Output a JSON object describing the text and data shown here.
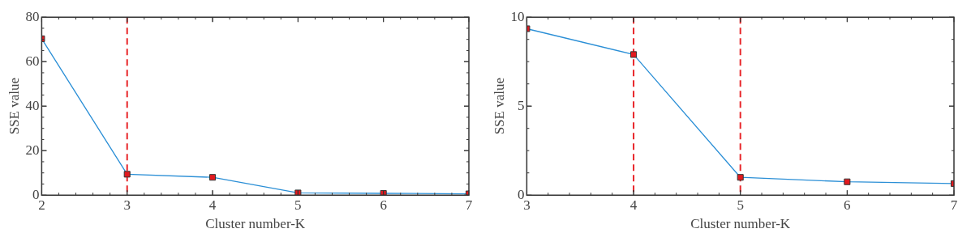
{
  "chart_data": [
    {
      "type": "line",
      "xlabel": "Cluster number-K",
      "ylabel": "SSE value",
      "x": [
        2,
        3,
        4,
        5,
        6,
        7
      ],
      "xlim": [
        2,
        7
      ],
      "xticks": [
        2,
        3,
        4,
        5,
        6,
        7
      ],
      "ylim": [
        0,
        80
      ],
      "yticks": [
        0,
        20,
        40,
        60,
        80
      ],
      "marker": "square",
      "line_style": "solid",
      "grid": false,
      "legend": false,
      "series": [
        {
          "color": "#2b8fd6",
          "values": [
            70.3,
            9.4,
            8.0,
            1.0,
            0.8,
            0.6
          ]
        }
      ],
      "ref_lines": [
        {
          "axis": "x",
          "value": 3,
          "color": "#e8262a",
          "line_style": "dashed"
        }
      ]
    },
    {
      "type": "line",
      "xlabel": "Cluster number-K",
      "ylabel": "SSE value",
      "x": [
        3,
        4,
        5,
        6,
        7
      ],
      "xlim": [
        3,
        7
      ],
      "xticks": [
        3,
        4,
        5,
        6,
        7
      ],
      "ylim": [
        0,
        10
      ],
      "yticks": [
        0,
        5,
        10
      ],
      "marker": "square",
      "line_style": "solid",
      "grid": false,
      "legend": false,
      "series": [
        {
          "color": "#2b8fd6",
          "values": [
            9.35,
            7.9,
            1.0,
            0.75,
            0.65
          ]
        }
      ],
      "ref_lines": [
        {
          "axis": "x",
          "value": 4,
          "color": "#e8262a",
          "line_style": "dashed"
        },
        {
          "axis": "x",
          "value": 5,
          "color": "#e8262a",
          "line_style": "dashed"
        }
      ]
    }
  ]
}
